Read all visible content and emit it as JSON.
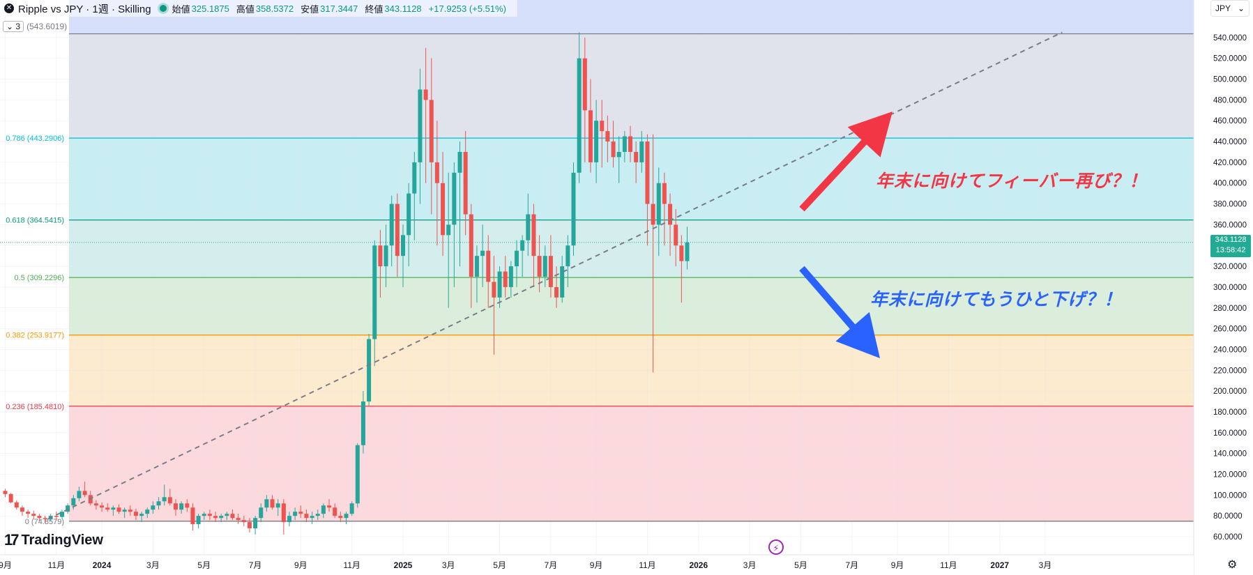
{
  "header": {
    "symbol": "Ripple vs JPY · 1週 · Skilling",
    "open_label": "始値",
    "open_value": "325.1875",
    "high_label": "高値",
    "high_value": "358.5372",
    "low_label": "安値",
    "low_value": "317.3447",
    "close_label": "終値",
    "close_value": "343.1128",
    "change": "+17.9253 (+5.51%)"
  },
  "collapse": {
    "count": "3",
    "value": "(543.6019)"
  },
  "currency": "JPY",
  "price_tag": {
    "price": "343.1128",
    "countdown": "13:58:42"
  },
  "brand": "TradingView",
  "annotations": {
    "bullish": "年末に向けてフィーバー再び？！",
    "bearish": "年末に向けてもうひと下げ？！"
  },
  "colors": {
    "up": "#26a69a",
    "down": "#ef5350",
    "accent": "#22ab94",
    "fib_1": "#787b86",
    "fib_0786": "#00bcd4",
    "fib_0618": "#089981",
    "fib_05": "#4caf50",
    "fib_0382": "#ff9800",
    "fib_0236": "#f23645"
  },
  "chart_data": {
    "type": "candlestick",
    "y_axis": {
      "min": 60,
      "max": 560,
      "ticks": [
        60,
        80,
        100,
        120,
        140,
        160,
        180,
        200,
        220,
        240,
        260,
        280,
        300,
        320,
        340,
        360,
        380,
        400,
        420,
        440,
        460,
        480,
        500,
        520,
        540
      ],
      "decimals": 4
    },
    "x_axis": {
      "labels": [
        "9月",
        "11月",
        "2024",
        "3月",
        "5月",
        "7月",
        "9月",
        "11月",
        "2025",
        "3月",
        "5月",
        "7月",
        "9月",
        "11月",
        "2026",
        "3月",
        "5月",
        "7月",
        "9月",
        "11月",
        "2027",
        "3月"
      ],
      "label_weeks": [
        0,
        9,
        17,
        26,
        35,
        44,
        52,
        61,
        70,
        78,
        87,
        96,
        104,
        113,
        122,
        131,
        140,
        149,
        157,
        166,
        175,
        183
      ]
    },
    "fibonacci": [
      {
        "label": "(543.6019)",
        "value": 543.6019,
        "fill": "#e0e3eb"
      },
      {
        "label": "0.786 (443.2906)",
        "value": 443.2906,
        "fill": "#c8eef3"
      },
      {
        "label": "0.618 (364.5415)",
        "value": 364.5415,
        "fill": "#d4eeee"
      },
      {
        "label": "0.5 (309.2296)",
        "value": 309.2296,
        "fill": "#dbeedb"
      },
      {
        "label": "0.382 (253.9177)",
        "value": 253.9177,
        "fill": "#fdebd0"
      },
      {
        "label": "0.236 (185.4810)",
        "value": 185.481,
        "fill": "#fbd9dc"
      },
      {
        "label": "0 (74.8579)",
        "value": 74.8579,
        "fill": null
      }
    ],
    "trendline": {
      "from": [
        7.5,
        77
      ],
      "to": [
        186,
        545
      ]
    },
    "ohlc_weekly": [
      [
        104,
        106,
        98,
        101
      ],
      [
        101,
        102,
        92,
        93
      ],
      [
        93,
        95,
        86,
        88
      ],
      [
        88,
        90,
        80,
        84
      ],
      [
        84,
        86,
        78,
        82
      ],
      [
        82,
        85,
        77,
        80
      ],
      [
        80,
        82,
        75,
        78
      ],
      [
        78,
        80,
        73,
        77
      ],
      [
        77,
        82,
        75,
        80
      ],
      [
        80,
        84,
        76,
        79
      ],
      [
        79,
        86,
        77,
        84
      ],
      [
        84,
        92,
        82,
        90
      ],
      [
        90,
        100,
        86,
        97
      ],
      [
        97,
        108,
        94,
        104
      ],
      [
        104,
        113,
        98,
        100
      ],
      [
        100,
        104,
        90,
        92
      ],
      [
        92,
        95,
        86,
        90
      ],
      [
        90,
        93,
        84,
        88
      ],
      [
        88,
        92,
        84,
        86
      ],
      [
        86,
        90,
        80,
        88
      ],
      [
        88,
        91,
        82,
        84
      ],
      [
        84,
        88,
        78,
        86
      ],
      [
        86,
        90,
        80,
        84
      ],
      [
        84,
        87,
        76,
        80
      ],
      [
        80,
        84,
        74,
        82
      ],
      [
        82,
        88,
        78,
        86
      ],
      [
        86,
        94,
        82,
        90
      ],
      [
        90,
        98,
        86,
        94
      ],
      [
        94,
        110,
        90,
        98
      ],
      [
        98,
        106,
        90,
        92
      ],
      [
        92,
        96,
        80,
        86
      ],
      [
        86,
        94,
        82,
        92
      ],
      [
        92,
        96,
        84,
        88
      ],
      [
        88,
        92,
        66,
        72
      ],
      [
        72,
        82,
        68,
        80
      ],
      [
        80,
        84,
        76,
        82
      ],
      [
        82,
        86,
        76,
        80
      ],
      [
        80,
        84,
        74,
        78
      ],
      [
        78,
        82,
        74,
        80
      ],
      [
        80,
        84,
        76,
        82
      ],
      [
        82,
        86,
        76,
        78
      ],
      [
        78,
        82,
        72,
        76
      ],
      [
        76,
        80,
        70,
        74
      ],
      [
        74,
        78,
        64,
        68
      ],
      [
        68,
        80,
        62,
        78
      ],
      [
        78,
        92,
        74,
        88
      ],
      [
        88,
        100,
        84,
        96
      ],
      [
        96,
        100,
        86,
        88
      ],
      [
        88,
        96,
        80,
        92
      ],
      [
        92,
        96,
        62,
        74
      ],
      [
        74,
        84,
        70,
        80
      ],
      [
        80,
        88,
        76,
        84
      ],
      [
        84,
        90,
        78,
        82
      ],
      [
        82,
        86,
        74,
        78
      ],
      [
        78,
        84,
        72,
        80
      ],
      [
        80,
        86,
        76,
        82
      ],
      [
        82,
        92,
        78,
        90
      ],
      [
        90,
        96,
        84,
        88
      ],
      [
        88,
        92,
        78,
        80
      ],
      [
        80,
        84,
        74,
        78
      ],
      [
        78,
        84,
        72,
        82
      ],
      [
        82,
        94,
        80,
        92
      ],
      [
        92,
        150,
        88,
        148
      ],
      [
        148,
        200,
        140,
        190
      ],
      [
        190,
        255,
        186,
        250
      ],
      [
        250,
        345,
        224,
        340
      ],
      [
        340,
        355,
        290,
        320
      ],
      [
        320,
        360,
        300,
        340
      ],
      [
        340,
        388,
        320,
        380
      ],
      [
        380,
        390,
        310,
        330
      ],
      [
        330,
        360,
        300,
        350
      ],
      [
        350,
        400,
        320,
        390
      ],
      [
        390,
        430,
        345,
        420
      ],
      [
        420,
        510,
        380,
        490
      ],
      [
        490,
        530,
        400,
        480
      ],
      [
        480,
        520,
        370,
        420
      ],
      [
        420,
        460,
        340,
        400
      ],
      [
        400,
        430,
        330,
        350
      ],
      [
        350,
        410,
        280,
        360
      ],
      [
        360,
        420,
        300,
        410
      ],
      [
        410,
        440,
        320,
        430
      ],
      [
        430,
        450,
        350,
        370
      ],
      [
        370,
        380,
        280,
        310
      ],
      [
        310,
        340,
        285,
        330
      ],
      [
        330,
        360,
        300,
        335
      ],
      [
        335,
        350,
        280,
        305
      ],
      [
        305,
        330,
        235,
        290
      ],
      [
        290,
        320,
        280,
        315
      ],
      [
        315,
        330,
        290,
        300
      ],
      [
        300,
        325,
        290,
        320
      ],
      [
        320,
        345,
        300,
        335
      ],
      [
        335,
        350,
        310,
        345
      ],
      [
        345,
        390,
        330,
        370
      ],
      [
        370,
        380,
        300,
        330
      ],
      [
        330,
        350,
        295,
        310
      ],
      [
        310,
        340,
        300,
        330
      ],
      [
        330,
        350,
        290,
        300
      ],
      [
        300,
        320,
        280,
        290
      ],
      [
        290,
        330,
        285,
        320
      ],
      [
        320,
        350,
        300,
        340
      ],
      [
        340,
        420,
        330,
        410
      ],
      [
        410,
        545,
        400,
        520
      ],
      [
        520,
        540,
        420,
        470
      ],
      [
        470,
        500,
        410,
        420
      ],
      [
        420,
        480,
        400,
        460
      ],
      [
        460,
        480,
        415,
        450
      ],
      [
        450,
        465,
        420,
        440
      ],
      [
        440,
        460,
        415,
        425
      ],
      [
        425,
        445,
        400,
        430
      ],
      [
        430,
        450,
        420,
        445
      ],
      [
        445,
        455,
        420,
        430
      ],
      [
        430,
        440,
        400,
        420
      ],
      [
        420,
        450,
        410,
        440
      ],
      [
        440,
        447,
        340,
        380
      ],
      [
        380,
        447,
        218,
        360
      ],
      [
        360,
        415,
        330,
        400
      ],
      [
        400,
        410,
        340,
        380
      ],
      [
        380,
        390,
        330,
        360
      ],
      [
        360,
        375,
        320,
        340
      ],
      [
        340,
        350,
        285,
        325
      ],
      [
        325,
        358,
        317,
        343
      ]
    ]
  }
}
